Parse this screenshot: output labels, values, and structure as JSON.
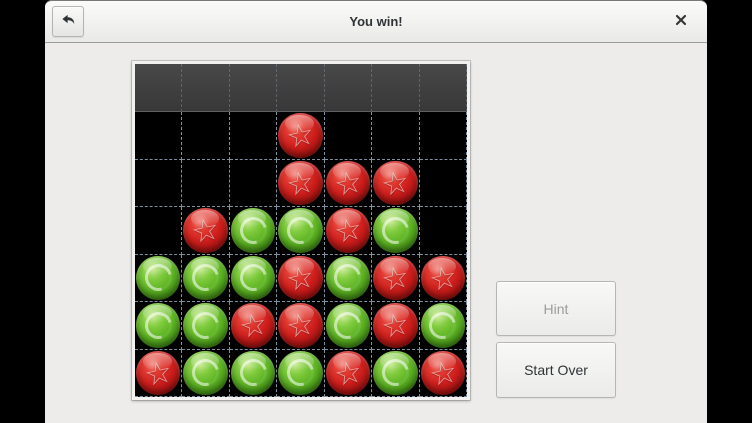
{
  "window": {
    "title": "You win!"
  },
  "header": {
    "back_icon": "undo-arrow-icon",
    "close_icon": "close-icon"
  },
  "side_panel": {
    "hint_label": "Hint",
    "hint_enabled": false,
    "start_over_label": "Start Over",
    "start_over_enabled": true
  },
  "board": {
    "columns": 7,
    "rows": 7,
    "drop_row": "empty gray strip at top",
    "cells": [
      ".......",
      "...R...",
      "...RRR.",
      ".RGGRG.",
      "GGGRGRR",
      "GGRRGRG",
      "RGGGRGR"
    ],
    "legend": {
      "R": "red ball with star emblem",
      "G": "green ball with ring emblem",
      ".": "empty"
    },
    "winning_line": [
      "r2c6",
      "r3c5",
      "r4c4",
      "r5c3"
    ]
  },
  "colors": {
    "red_piece": "#cf1f1d",
    "green_piece": "#5db323",
    "board_background": "#000000",
    "drop_row": "#3f3f3f",
    "grid_dash": "#96aabe",
    "window_background": "#edecea",
    "header_gradient_top": "#fbfbfa",
    "header_gradient_bottom": "#e9e9e7"
  }
}
